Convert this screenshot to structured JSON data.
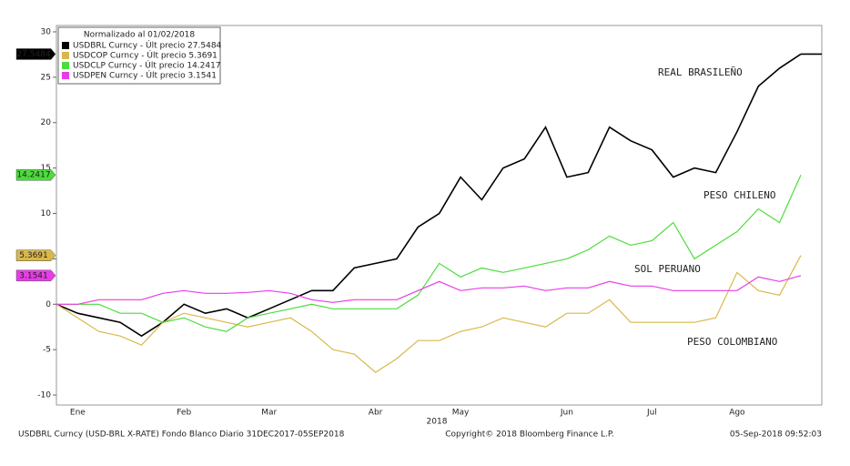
{
  "chart_data": {
    "type": "line",
    "legend_title": "Normalizado al 01/02/2018",
    "x_label": "2018",
    "categories": [
      null,
      "Ene",
      null,
      null,
      null,
      null,
      "Feb",
      null,
      null,
      null,
      "Mar",
      null,
      null,
      null,
      null,
      "Abr",
      null,
      null,
      null,
      "May",
      null,
      null,
      null,
      null,
      "Jun",
      null,
      null,
      null,
      "Jul",
      null,
      null,
      null,
      "Ago",
      null,
      null,
      null
    ],
    "series": [
      {
        "name": "USDBRL Curncy - Últ precio 27.5484",
        "color": "#000000",
        "values": [
          0,
          -1,
          -1.5,
          -2,
          -3.5,
          -2,
          0,
          -1,
          -0.5,
          -1.5,
          -0.5,
          0.5,
          1.5,
          1.5,
          4,
          4.5,
          5,
          8.5,
          10,
          14,
          11.5,
          15,
          16,
          19.5,
          14,
          14.5,
          19.5,
          18,
          17,
          14,
          15,
          14.5,
          19,
          24,
          26,
          27.5484
        ]
      },
      {
        "name": "USDCOP Curncy - Últ precio 5.3691",
        "color": "#d9b84a",
        "values": [
          0,
          -1.5,
          -3,
          -3.5,
          -4.5,
          -2,
          -1,
          -1.5,
          -2,
          -2.5,
          -2,
          -1.5,
          -3,
          -5,
          -5.5,
          -7.5,
          -6,
          -4,
          -4,
          -3,
          -2.5,
          -1.5,
          -2,
          -2.5,
          -1,
          -1,
          0.5,
          -2,
          -2,
          -2,
          -2,
          -1.5,
          3.5,
          1.5,
          1,
          5.3691
        ]
      },
      {
        "name": "USDCLP Curncy - Últ precio 14.2417",
        "color": "#4cdc3c",
        "values": [
          0,
          0,
          0,
          -1,
          -1,
          -2,
          -1.5,
          -2.5,
          -3,
          -1.5,
          -1,
          -0.5,
          0,
          -0.5,
          -0.5,
          -0.5,
          -0.5,
          1,
          4.5,
          3,
          4,
          3.5,
          4,
          4.5,
          5,
          6,
          7.5,
          6.5,
          7,
          9,
          5,
          6.5,
          8,
          10.5,
          9,
          14.2417
        ]
      },
      {
        "name": "USDPEN Curncy - Últ precio 3.1541",
        "color": "#e83ce8",
        "values": [
          0,
          0,
          0.5,
          0.5,
          0.5,
          1.2,
          1.5,
          1.2,
          1.2,
          1.3,
          1.5,
          1.2,
          0.5,
          0.2,
          0.5,
          0.5,
          0.5,
          1.5,
          2.5,
          1.5,
          1.8,
          1.8,
          2,
          1.5,
          1.8,
          1.8,
          2.5,
          2,
          2,
          1.5,
          1.5,
          1.5,
          1.5,
          3,
          2.5,
          3.1541
        ]
      }
    ],
    "annotations": [
      {
        "text": "REAL BRASILEÑO",
        "color": "#000000"
      },
      {
        "text": "PESO CHILENO",
        "color": "#6b8f2a"
      },
      {
        "text": "SOL PERUANO",
        "color": "#d040c0"
      },
      {
        "text": "PESO COLOMBIANO",
        "color": "#c9a93a"
      }
    ],
    "ylim": [
      -11.1,
      30.7
    ],
    "yticks": [
      30,
      25,
      20,
      15,
      10,
      5,
      0,
      -5,
      -10
    ],
    "footer": {
      "left": "USDBRL Curncy (USD-BRL X-RATE) Fondo Blanco  Diario 31DEC2017-05SEP2018",
      "center": "Copyright© 2018 Bloomberg Finance L.P.",
      "right": "05-Sep-2018 09:52:03"
    }
  }
}
